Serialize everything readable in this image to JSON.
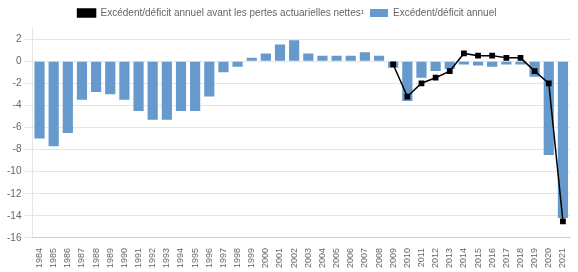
{
  "chart_data": {
    "type": "bar",
    "categories": [
      "1984",
      "1985",
      "1986",
      "1987",
      "1988",
      "1989",
      "1990",
      "1991",
      "1992",
      "1993",
      "1994",
      "1995",
      "1996",
      "1997",
      "1998",
      "1999",
      "2000",
      "2001",
      "2002",
      "2003",
      "2004",
      "2005",
      "2006",
      "2007",
      "2008",
      "2009",
      "2010",
      "2011",
      "2012",
      "2013",
      "2014",
      "2015",
      "2016",
      "2017",
      "2018",
      "2019",
      "2020",
      "2021"
    ],
    "series": [
      {
        "name": "Excédent/déficit annuel",
        "type": "bar",
        "color": "#6699cc",
        "values": [
          -7.0,
          -7.7,
          -6.5,
          -3.5,
          -2.8,
          -3.0,
          -3.5,
          -4.5,
          -5.3,
          -5.3,
          -4.5,
          -4.5,
          -3.2,
          -1.0,
          -0.5,
          0.3,
          0.7,
          1.5,
          1.9,
          0.7,
          0.5,
          0.5,
          0.5,
          0.8,
          0.5,
          -0.6,
          -3.6,
          -1.5,
          -0.9,
          -0.7,
          -0.3,
          -0.4,
          -0.5,
          -0.3,
          -0.3,
          -1.4,
          -8.5,
          -14.2
        ]
      },
      {
        "name": "Excédent/déficit annuel avant les pertes actuarielles nettes¹",
        "type": "line",
        "color": "#000000",
        "marker": "square",
        "line_style": "solid",
        "values": [
          null,
          null,
          null,
          null,
          null,
          null,
          null,
          null,
          null,
          null,
          null,
          null,
          null,
          null,
          null,
          null,
          null,
          null,
          null,
          null,
          null,
          null,
          null,
          null,
          null,
          -0.3,
          -3.2,
          -2.0,
          -1.5,
          -0.9,
          0.7,
          0.5,
          0.5,
          0.3,
          0.3,
          -0.9,
          -2.0,
          -14.5
        ]
      }
    ],
    "ylim": [
      -16,
      3
    ],
    "yticks": [
      -16,
      -14,
      -12,
      -10,
      -8,
      -6,
      -4,
      -2,
      0,
      2
    ],
    "grid": true,
    "legend": "top"
  }
}
